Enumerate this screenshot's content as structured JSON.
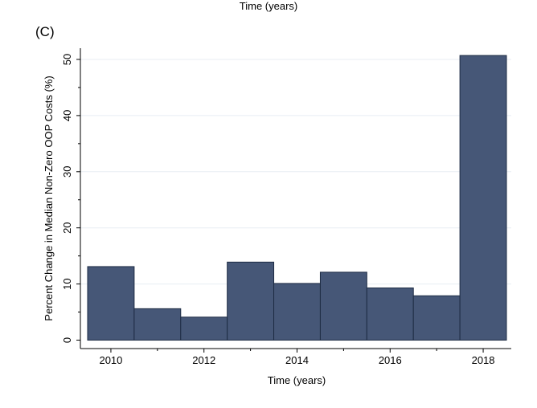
{
  "top_caption": "Time (years)",
  "panel_label": "(C)",
  "colors": {
    "bar_fill": "#465777",
    "bar_stroke": "#1e2c44",
    "grid": "#e8eef3",
    "axis": "#000000"
  },
  "chart_data": {
    "type": "bar",
    "categories": [
      2010,
      2011,
      2012,
      2013,
      2014,
      2015,
      2016,
      2017,
      2018
    ],
    "values": [
      13.1,
      5.6,
      4.1,
      13.9,
      10.1,
      12.1,
      9.3,
      7.9,
      50.7
    ],
    "xlabel": "Time (years)",
    "ylabel": "Percent Change in Median Non-Zero OOP Costs (%)",
    "xlim": [
      2009.5,
      2018.5
    ],
    "ylim": [
      -1.5,
      52
    ],
    "xticks": [
      2010,
      2012,
      2014,
      2016,
      2018
    ],
    "yticks": [
      0,
      10,
      20,
      30,
      40,
      50
    ],
    "grid": true
  }
}
